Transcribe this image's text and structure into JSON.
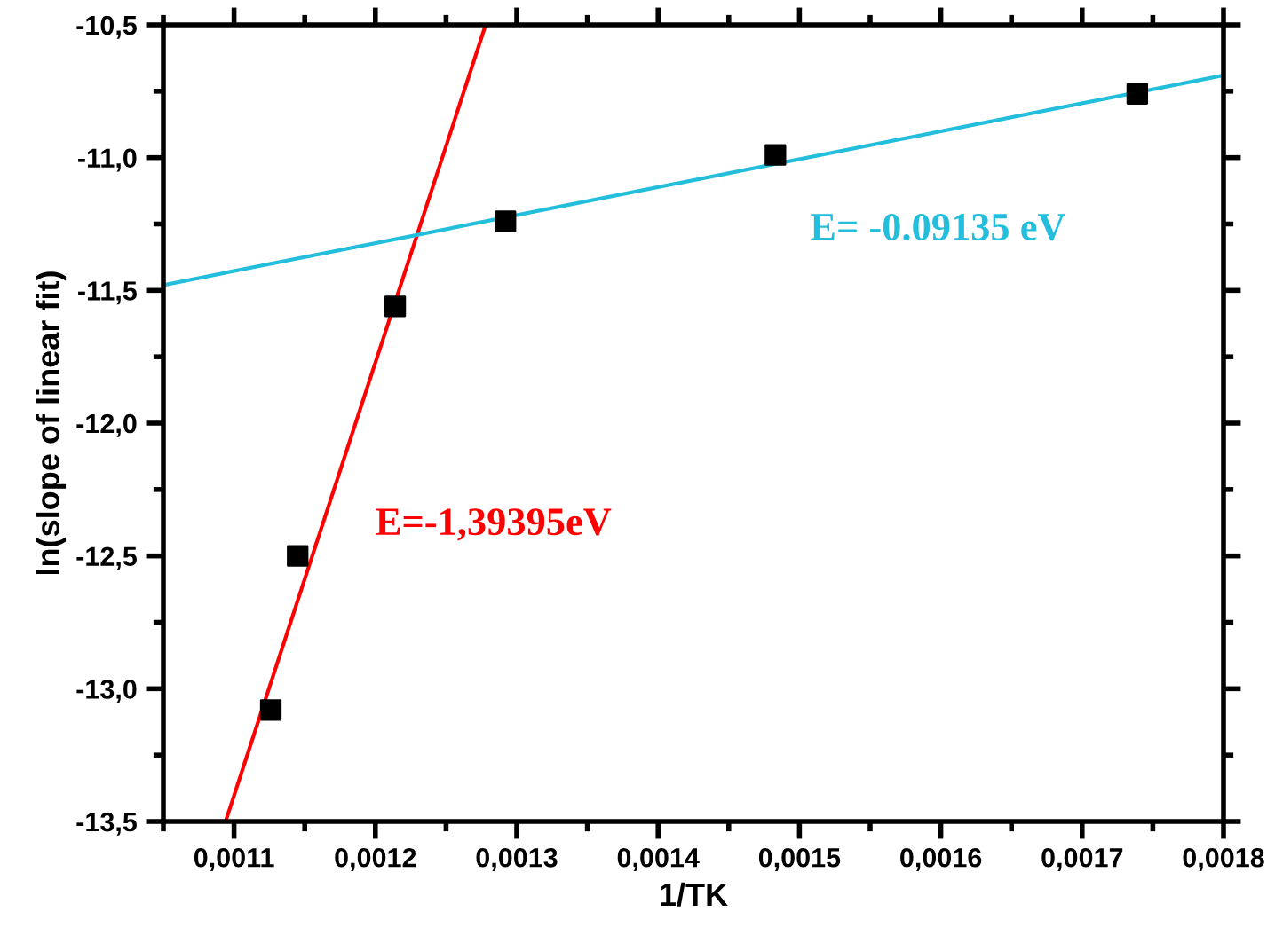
{
  "chart_data": {
    "type": "scatter",
    "xlabel": "1/TK",
    "ylabel": "ln(slope of linear fit)",
    "xlim": [
      0.00105,
      0.0018
    ],
    "ylim": [
      -13.5,
      -10.5
    ],
    "xticks": [
      {
        "value": 0.0011,
        "label": "0,0011"
      },
      {
        "value": 0.0012,
        "label": "0,0012"
      },
      {
        "value": 0.0013,
        "label": "0,0013"
      },
      {
        "value": 0.0014,
        "label": "0,0014"
      },
      {
        "value": 0.0015,
        "label": "0,0015"
      },
      {
        "value": 0.0016,
        "label": "0,0016"
      },
      {
        "value": 0.0017,
        "label": "0,0017"
      },
      {
        "value": 0.0018,
        "label": "0,0018"
      }
    ],
    "yticks": [
      {
        "value": -13.5,
        "label": "-13,5"
      },
      {
        "value": -13.0,
        "label": "-13,0"
      },
      {
        "value": -12.5,
        "label": "-12,5"
      },
      {
        "value": -12.0,
        "label": "-12,0"
      },
      {
        "value": -11.5,
        "label": "-11,5"
      },
      {
        "value": -11.0,
        "label": "-11,0"
      },
      {
        "value": -10.5,
        "label": "-10,5"
      }
    ],
    "grid": false,
    "legend": false,
    "series": [
      {
        "color": "#000000",
        "marker": "square",
        "x": [
          0.001126,
          0.001145,
          0.001214,
          0.001292,
          0.001483,
          0.001739
        ],
        "values": [
          -13.08,
          -12.5,
          -11.56,
          -11.24,
          -10.99,
          -10.76
        ]
      },
      {
        "type": "line",
        "name": "E=-1,39395eV",
        "color": "#ff0000",
        "marker": "none",
        "x": [
          0.001094,
          0.001278
        ],
        "values": [
          -13.5,
          -10.5
        ]
      },
      {
        "type": "line",
        "name": "E= -0.09135 eV",
        "color": "#22bedc",
        "marker": "none",
        "x": [
          0.00105,
          0.0018
        ],
        "values": [
          -11.48,
          -10.69
        ]
      }
    ]
  }
}
